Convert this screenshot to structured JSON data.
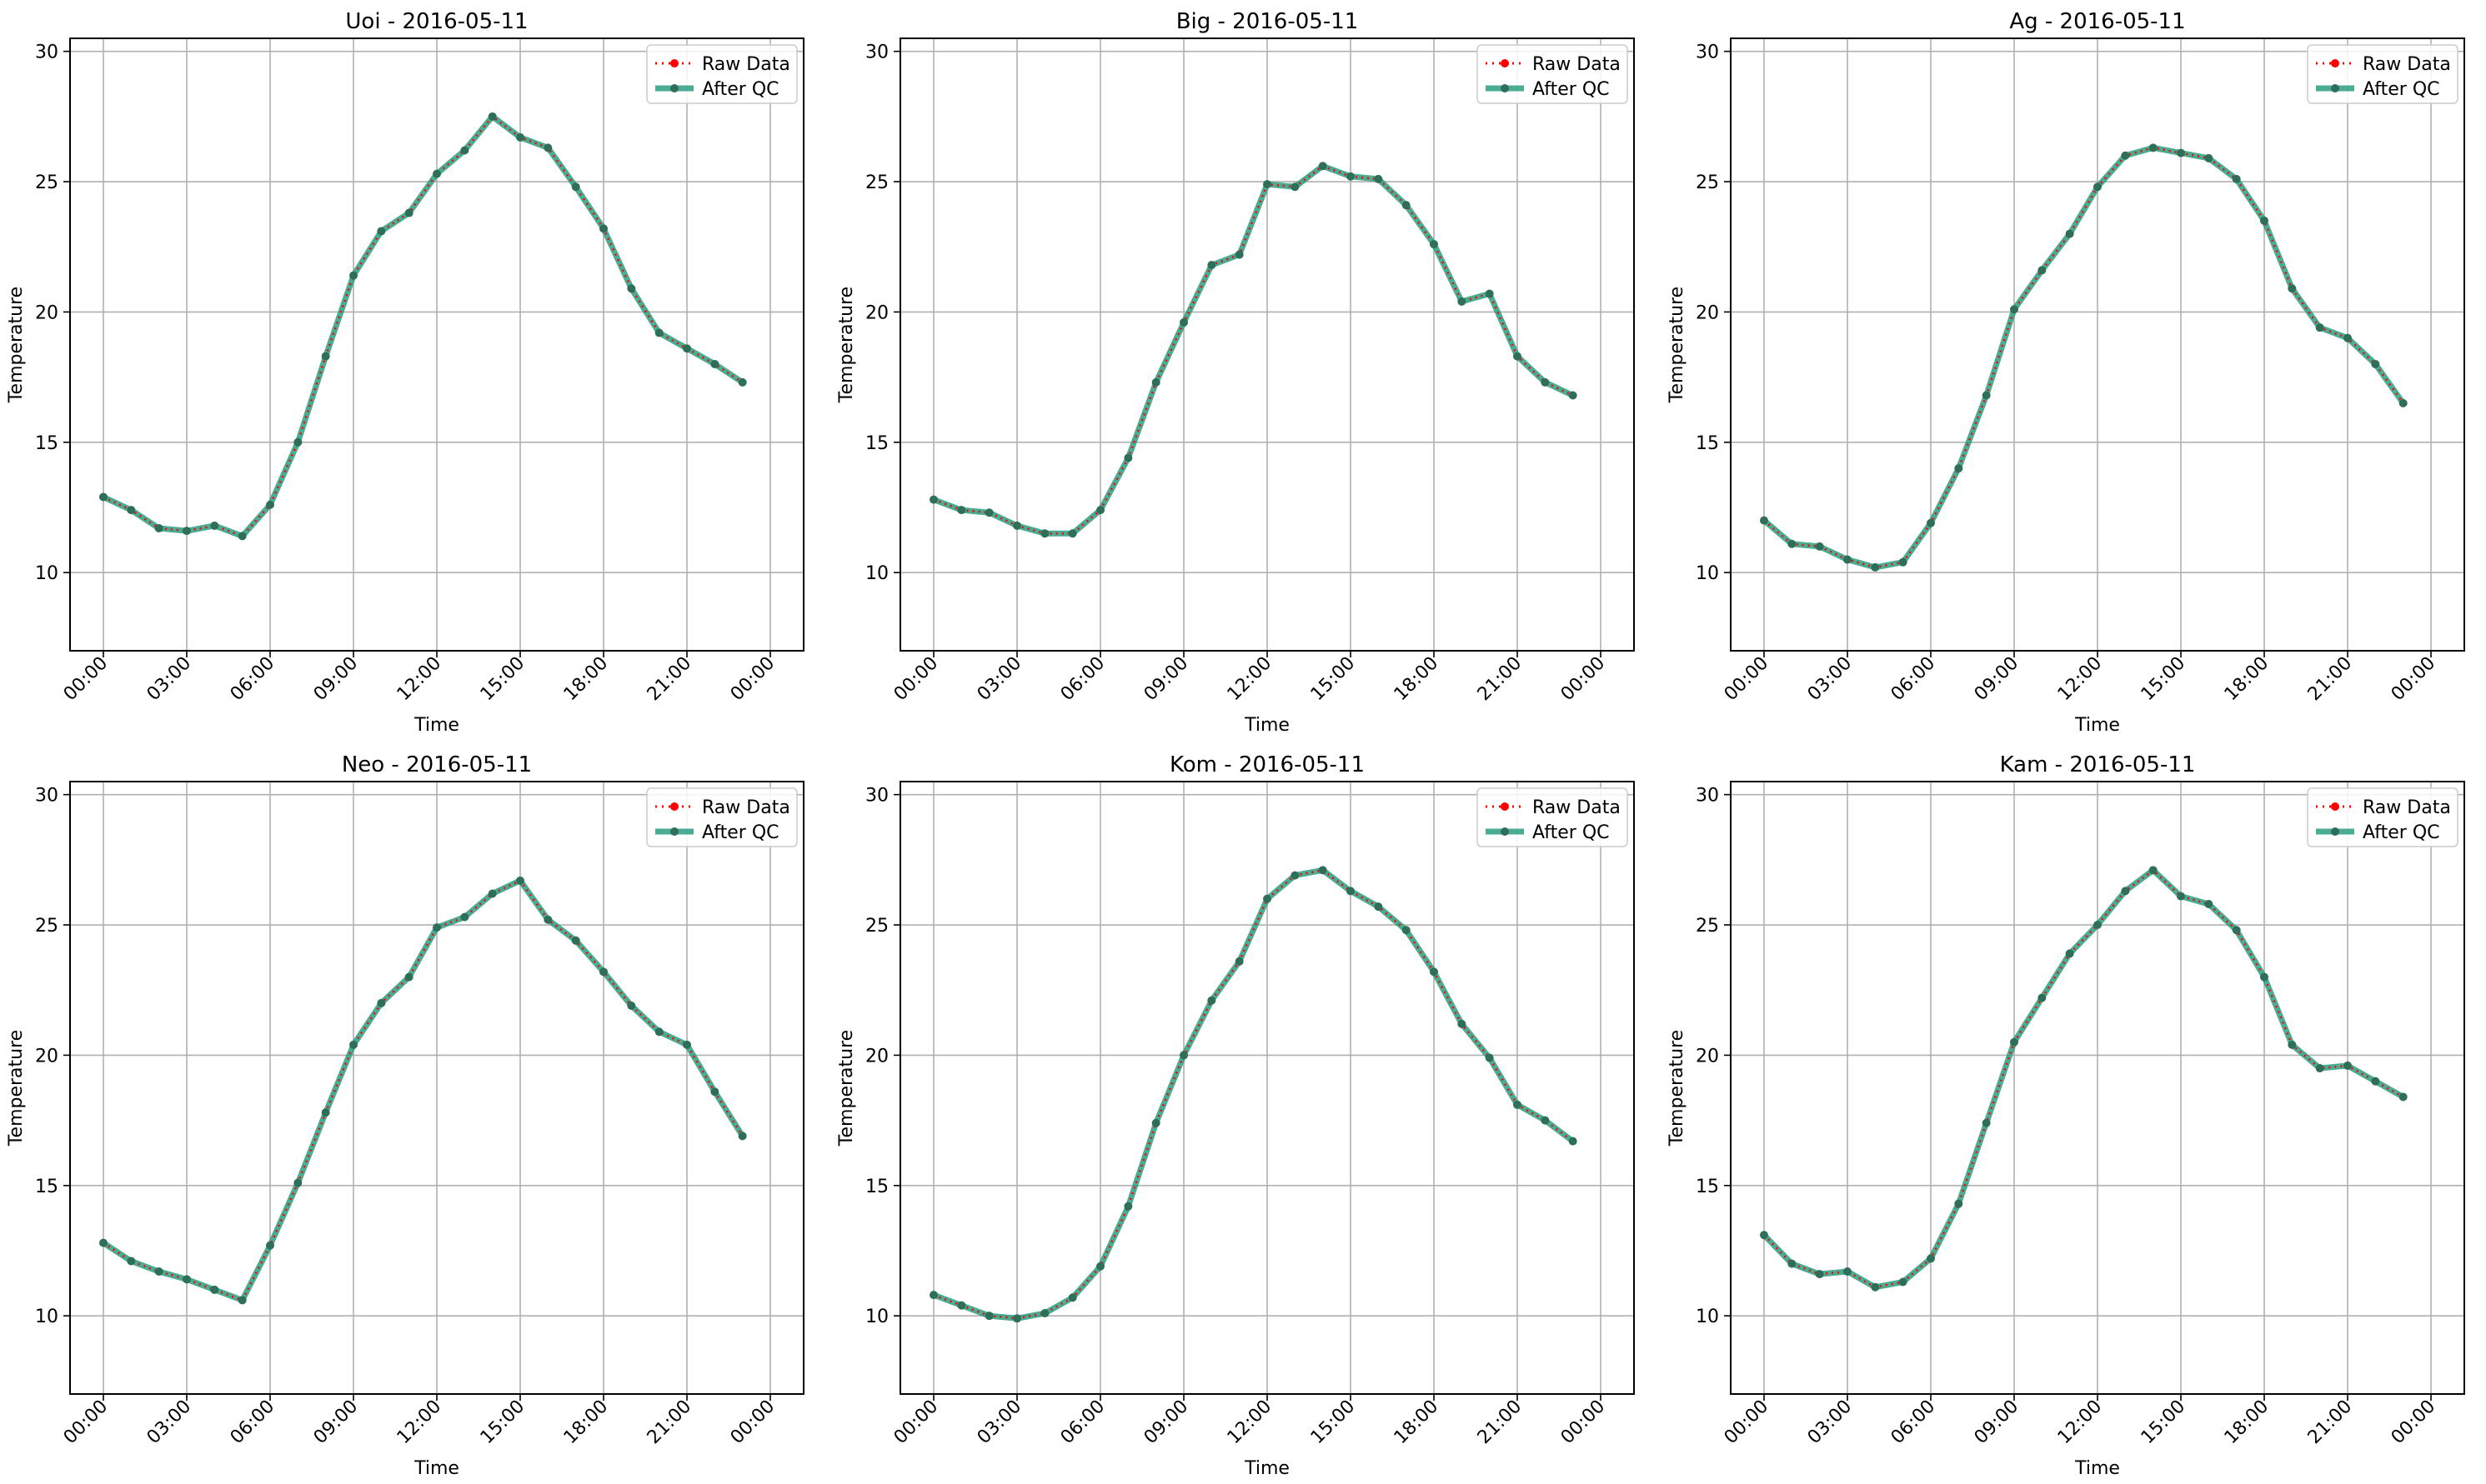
{
  "colors": {
    "raw": "#ff0000",
    "qc": "#2a9d7f",
    "qc_marker": "#2f6f5a",
    "grid": "#b0b0b0"
  },
  "legend": {
    "raw_label": "Raw Data",
    "qc_label": "After QC",
    "placement": "upper right"
  },
  "chart_data": [
    {
      "type": "line",
      "title": "Uoi - 2016-05-11",
      "xlabel": "Time",
      "ylabel": "Temperature",
      "x_hours": [
        0,
        1,
        2,
        3,
        4,
        5,
        6,
        7,
        8,
        9,
        10,
        11,
        12,
        13,
        14,
        15,
        16,
        17,
        18,
        19,
        20,
        21,
        22,
        23
      ],
      "xticks": [
        "00:00",
        "03:00",
        "06:00",
        "09:00",
        "12:00",
        "15:00",
        "18:00",
        "21:00",
        "00:00"
      ],
      "xlim": [
        "00:00",
        "00:00 (+1 day)"
      ],
      "ylim": [
        7,
        30.5
      ],
      "yticks": [
        10,
        15,
        20,
        25,
        30
      ],
      "grid": true,
      "series": [
        {
          "name": "Raw Data",
          "values": [
            12.9,
            12.4,
            11.7,
            11.6,
            11.8,
            11.4,
            12.6,
            15.0,
            18.3,
            21.4,
            23.1,
            23.8,
            25.3,
            26.2,
            27.5,
            26.7,
            26.3,
            24.8,
            23.2,
            20.9,
            19.2,
            18.6,
            18.0,
            17.3
          ]
        },
        {
          "name": "After QC",
          "values": [
            12.9,
            12.4,
            11.7,
            11.6,
            11.8,
            11.4,
            12.6,
            15.0,
            18.3,
            21.4,
            23.1,
            23.8,
            25.3,
            26.2,
            27.5,
            26.7,
            26.3,
            24.8,
            23.2,
            20.9,
            19.2,
            18.6,
            18.0,
            17.3
          ]
        }
      ]
    },
    {
      "type": "line",
      "title": "Big - 2016-05-11",
      "xlabel": "Time",
      "ylabel": "Temperature",
      "x_hours": [
        0,
        1,
        2,
        3,
        4,
        5,
        6,
        7,
        8,
        9,
        10,
        11,
        12,
        13,
        14,
        15,
        16,
        17,
        18,
        19,
        20,
        21,
        22,
        23
      ],
      "xticks": [
        "00:00",
        "03:00",
        "06:00",
        "09:00",
        "12:00",
        "15:00",
        "18:00",
        "21:00",
        "00:00"
      ],
      "xlim": [
        "00:00",
        "00:00 (+1 day)"
      ],
      "ylim": [
        7,
        30.5
      ],
      "yticks": [
        10,
        15,
        20,
        25,
        30
      ],
      "grid": true,
      "series": [
        {
          "name": "Raw Data",
          "values": [
            12.8,
            12.4,
            12.3,
            11.8,
            11.5,
            11.5,
            12.4,
            14.4,
            17.3,
            19.6,
            21.8,
            22.2,
            24.9,
            24.8,
            25.6,
            25.2,
            25.1,
            24.1,
            22.6,
            20.4,
            20.7,
            18.3,
            17.3,
            16.8
          ]
        },
        {
          "name": "After QC",
          "values": [
            12.8,
            12.4,
            12.3,
            11.8,
            11.5,
            11.5,
            12.4,
            14.4,
            17.3,
            19.6,
            21.8,
            22.2,
            24.9,
            24.8,
            25.6,
            25.2,
            25.1,
            24.1,
            22.6,
            20.4,
            20.7,
            18.3,
            17.3,
            16.8
          ]
        }
      ]
    },
    {
      "type": "line",
      "title": "Ag - 2016-05-11",
      "xlabel": "Time",
      "ylabel": "Temperature",
      "x_hours": [
        0,
        1,
        2,
        3,
        4,
        5,
        6,
        7,
        8,
        9,
        10,
        11,
        12,
        13,
        14,
        15,
        16,
        17,
        18,
        19,
        20,
        21,
        22,
        23
      ],
      "xticks": [
        "00:00",
        "03:00",
        "06:00",
        "09:00",
        "12:00",
        "15:00",
        "18:00",
        "21:00",
        "00:00"
      ],
      "xlim": [
        "00:00",
        "00:00 (+1 day)"
      ],
      "ylim": [
        7,
        30.5
      ],
      "yticks": [
        10,
        15,
        20,
        25,
        30
      ],
      "grid": true,
      "series": [
        {
          "name": "Raw Data",
          "values": [
            12.0,
            11.1,
            11.0,
            10.5,
            10.2,
            10.4,
            11.9,
            14.0,
            16.8,
            20.1,
            21.6,
            23.0,
            24.8,
            26.0,
            26.3,
            26.1,
            25.9,
            25.1,
            23.5,
            20.9,
            19.4,
            19.0,
            18.0,
            16.5
          ]
        },
        {
          "name": "After QC",
          "values": [
            12.0,
            11.1,
            11.0,
            10.5,
            10.2,
            10.4,
            11.9,
            14.0,
            16.8,
            20.1,
            21.6,
            23.0,
            24.8,
            26.0,
            26.3,
            26.1,
            25.9,
            25.1,
            23.5,
            20.9,
            19.4,
            19.0,
            18.0,
            16.5
          ]
        }
      ]
    },
    {
      "type": "line",
      "title": "Neo - 2016-05-11",
      "xlabel": "Time",
      "ylabel": "Temperature",
      "x_hours": [
        0,
        1,
        2,
        3,
        4,
        5,
        6,
        7,
        8,
        9,
        10,
        11,
        12,
        13,
        14,
        15,
        16,
        17,
        18,
        19,
        20,
        21,
        22,
        23
      ],
      "xticks": [
        "00:00",
        "03:00",
        "06:00",
        "09:00",
        "12:00",
        "15:00",
        "18:00",
        "21:00",
        "00:00"
      ],
      "xlim": [
        "00:00",
        "00:00 (+1 day)"
      ],
      "ylim": [
        7,
        30.5
      ],
      "yticks": [
        10,
        15,
        20,
        25,
        30
      ],
      "grid": true,
      "series": [
        {
          "name": "Raw Data",
          "values": [
            12.8,
            12.1,
            11.7,
            11.4,
            11.0,
            10.6,
            12.7,
            15.1,
            17.8,
            20.4,
            22.0,
            23.0,
            24.9,
            25.3,
            26.2,
            26.7,
            25.2,
            24.4,
            23.2,
            21.9,
            20.9,
            20.4,
            18.6,
            16.9
          ]
        },
        {
          "name": "After QC",
          "values": [
            12.8,
            12.1,
            11.7,
            11.4,
            11.0,
            10.6,
            12.7,
            15.1,
            17.8,
            20.4,
            22.0,
            23.0,
            24.9,
            25.3,
            26.2,
            26.7,
            25.2,
            24.4,
            23.2,
            21.9,
            20.9,
            20.4,
            18.6,
            16.9
          ]
        }
      ]
    },
    {
      "type": "line",
      "title": "Kom - 2016-05-11",
      "xlabel": "Time",
      "ylabel": "Temperature",
      "x_hours": [
        0,
        1,
        2,
        3,
        4,
        5,
        6,
        7,
        8,
        9,
        10,
        11,
        12,
        13,
        14,
        15,
        16,
        17,
        18,
        19,
        20,
        21,
        22,
        23
      ],
      "xticks": [
        "00:00",
        "03:00",
        "06:00",
        "09:00",
        "12:00",
        "15:00",
        "18:00",
        "21:00",
        "00:00"
      ],
      "xlim": [
        "00:00",
        "00:00 (+1 day)"
      ],
      "ylim": [
        7,
        30.5
      ],
      "yticks": [
        10,
        15,
        20,
        25,
        30
      ],
      "grid": true,
      "series": [
        {
          "name": "Raw Data",
          "values": [
            10.8,
            10.4,
            10.0,
            9.9,
            10.1,
            10.7,
            11.9,
            14.2,
            17.4,
            20.0,
            22.1,
            23.6,
            26.0,
            26.9,
            27.1,
            26.3,
            25.7,
            24.8,
            23.2,
            21.2,
            19.9,
            18.1,
            17.5,
            16.7
          ]
        },
        {
          "name": "After QC",
          "values": [
            10.8,
            10.4,
            10.0,
            9.9,
            10.1,
            10.7,
            11.9,
            14.2,
            17.4,
            20.0,
            22.1,
            23.6,
            26.0,
            26.9,
            27.1,
            26.3,
            25.7,
            24.8,
            23.2,
            21.2,
            19.9,
            18.1,
            17.5,
            16.7
          ]
        }
      ]
    },
    {
      "type": "line",
      "title": "Kam - 2016-05-11",
      "xlabel": "Time",
      "ylabel": "Temperature",
      "x_hours": [
        0,
        1,
        2,
        3,
        4,
        5,
        6,
        7,
        8,
        9,
        10,
        11,
        12,
        13,
        14,
        15,
        16,
        17,
        18,
        19,
        20,
        21,
        22,
        23
      ],
      "xticks": [
        "00:00",
        "03:00",
        "06:00",
        "09:00",
        "12:00",
        "15:00",
        "18:00",
        "21:00",
        "00:00"
      ],
      "xlim": [
        "00:00",
        "00:00 (+1 day)"
      ],
      "ylim": [
        7,
        30.5
      ],
      "yticks": [
        10,
        15,
        20,
        25,
        30
      ],
      "grid": true,
      "series": [
        {
          "name": "Raw Data",
          "values": [
            13.1,
            12.0,
            11.6,
            11.7,
            11.1,
            11.3,
            12.2,
            14.3,
            17.4,
            20.5,
            22.2,
            23.9,
            25.0,
            26.3,
            27.1,
            26.1,
            25.8,
            24.8,
            23.0,
            20.4,
            19.5,
            19.6,
            19.0,
            18.4
          ]
        },
        {
          "name": "After QC",
          "values": [
            13.1,
            12.0,
            11.6,
            11.7,
            11.1,
            11.3,
            12.2,
            14.3,
            17.4,
            20.5,
            22.2,
            23.9,
            25.0,
            26.3,
            27.1,
            26.1,
            25.8,
            24.8,
            23.0,
            20.4,
            19.5,
            19.6,
            19.0,
            18.4
          ]
        }
      ]
    }
  ]
}
